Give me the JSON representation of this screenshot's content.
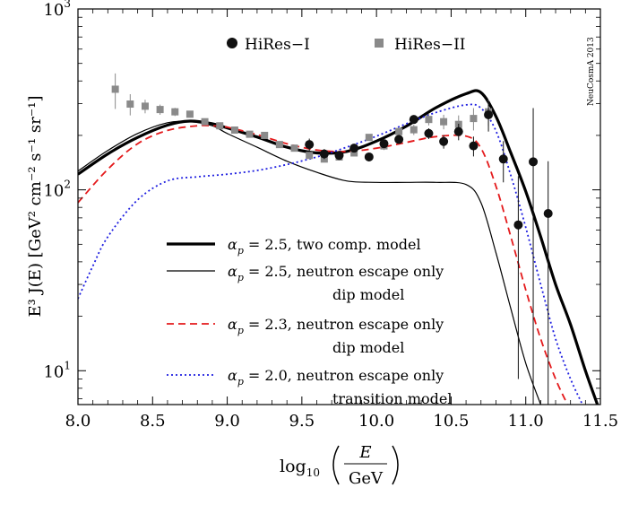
{
  "chart_data": {
    "type": "line",
    "xlim": [
      8.0,
      11.5
    ],
    "ylim": [
      6.5,
      1000
    ],
    "y_log": true,
    "x_ticks": [
      {
        "v": 8.0,
        "label": "8.0"
      },
      {
        "v": 8.5,
        "label": "8.5"
      },
      {
        "v": 9.0,
        "label": "9.0"
      },
      {
        "v": 9.5,
        "label": "9.5"
      },
      {
        "v": 10.0,
        "label": "10.0"
      },
      {
        "v": 10.5,
        "label": "10.5"
      },
      {
        "v": 11.0,
        "label": "11.0"
      },
      {
        "v": 11.5,
        "label": "11.5"
      }
    ],
    "y_ticks": [
      {
        "v": 10,
        "base": "10",
        "exp": "1"
      },
      {
        "v": 100,
        "base": "10",
        "exp": "2"
      },
      {
        "v": 1000,
        "base": "10",
        "exp": "3"
      }
    ],
    "xlabel": {
      "prefix": "log",
      "sub": "10",
      "num": "E",
      "den": "GeV"
    },
    "ylabel": "E³ J(E) [GeV² cm⁻² s⁻¹ sr⁻¹]",
    "watermark": "NeuCosmA 2013",
    "grid": false,
    "legend_top": {
      "position": "top-center",
      "entries": [
        {
          "name": "HiRes−I",
          "marker": "circle",
          "color": "#111111"
        },
        {
          "name": "HiRes−II",
          "marker": "square",
          "color": "#8a8a8a"
        }
      ]
    },
    "legend_lines": {
      "position": "bottom-center",
      "entries": [
        {
          "label": "αp = 2.5, two comp. model",
          "sub": [
            "two comp. model"
          ],
          "color": "#000000",
          "style": "thick"
        },
        {
          "label": "αp = 2.5, neutron escape only",
          "sub": [
            "dip model"
          ],
          "color": "#000000",
          "style": "thin"
        },
        {
          "label": "αp = 2.3, neutron escape only",
          "sub": [
            "dip model"
          ],
          "color": "#e41a1c",
          "style": "dashed"
        },
        {
          "label": "αp = 2.0, neutron escape only",
          "sub": [
            "transition model"
          ],
          "color": "#1f1fe0",
          "style": "dotted"
        }
      ]
    },
    "legend_text": {
      "l1": "= 2.5, two comp. model",
      "l2": "= 2.5, neutron escape only",
      "l2b": "dip model",
      "l3": "= 2.3, neutron escape only",
      "l3b": "dip model",
      "l4": "= 2.0, neutron escape only",
      "l4b": "transition model",
      "alpha": "α",
      "p": "p"
    },
    "series": [
      {
        "name": "αp = 2.5, two comp. model",
        "color": "#000000",
        "width": 3.2,
        "dash": "",
        "x": [
          8.0,
          8.2,
          8.4,
          8.6,
          8.75,
          8.9,
          9.0,
          9.2,
          9.4,
          9.6,
          9.8,
          10.0,
          10.2,
          10.4,
          10.6,
          10.7,
          10.8,
          10.9,
          11.0,
          11.1,
          11.2,
          11.3,
          11.4,
          11.48
        ],
        "y": [
          122,
          158,
          195,
          228,
          240,
          232,
          220,
          196,
          172,
          160,
          163,
          186,
          225,
          285,
          340,
          345,
          255,
          160,
          98,
          55,
          30,
          18,
          10,
          6.5
        ]
      },
      {
        "name": "αp = 2.5, neutron escape only",
        "color": "#000000",
        "width": 1.2,
        "dash": "",
        "x": [
          8.0,
          8.2,
          8.4,
          8.6,
          8.75,
          8.9,
          9.0,
          9.2,
          9.4,
          9.6,
          9.8,
          10.0,
          10.2,
          10.4,
          10.6,
          10.7,
          10.8,
          10.9,
          11.0,
          11.1
        ],
        "y": [
          127,
          165,
          205,
          235,
          238,
          226,
          205,
          172,
          144,
          125,
          112,
          110,
          110,
          110,
          107,
          85,
          45,
          22,
          11,
          6.5
        ]
      },
      {
        "name": "αp = 2.3, neutron escape only",
        "color": "#e41a1c",
        "width": 1.8,
        "dash": "8 5",
        "x": [
          8.0,
          8.2,
          8.4,
          8.6,
          8.8,
          8.9,
          9.0,
          9.2,
          9.4,
          9.6,
          9.8,
          10.0,
          10.2,
          10.4,
          10.6,
          10.7,
          10.8,
          10.9,
          11.0,
          11.1,
          11.2,
          11.28
        ],
        "y": [
          85,
          130,
          180,
          213,
          226,
          226,
          222,
          202,
          180,
          166,
          163,
          170,
          183,
          197,
          198,
          170,
          105,
          55,
          28,
          15,
          9,
          6.5
        ]
      },
      {
        "name": "αp = 2.0, neutron escape only",
        "color": "#1f1fe0",
        "width": 1.8,
        "dash": "2 3",
        "x": [
          8.0,
          8.1,
          8.2,
          8.4,
          8.6,
          8.8,
          9.0,
          9.2,
          9.4,
          9.6,
          9.8,
          10.0,
          10.2,
          10.4,
          10.6,
          10.7,
          10.8,
          10.9,
          11.0,
          11.1,
          11.2,
          11.3,
          11.38
        ],
        "y": [
          25,
          38,
          55,
          88,
          112,
          118,
          122,
          128,
          138,
          152,
          172,
          198,
          232,
          268,
          295,
          283,
          212,
          120,
          62,
          30,
          15,
          9,
          6.5
        ]
      }
    ],
    "hires1": {
      "name": "HiRes−I",
      "x": [
        9.55,
        9.65,
        9.75,
        9.85,
        9.95,
        10.05,
        10.15,
        10.25,
        10.35,
        10.45,
        10.55,
        10.65,
        10.75,
        10.85,
        10.95,
        11.05,
        11.15
      ],
      "y": [
        178,
        158,
        155,
        170,
        152,
        180,
        190,
        245,
        205,
        185,
        210,
        175,
        260,
        148,
        64,
        143,
        74
      ],
      "err": [
        14,
        10,
        8,
        9,
        8,
        8,
        9,
        12,
        14,
        16,
        22,
        22,
        50,
        38,
        55,
        140,
        70
      ]
    },
    "hires2": {
      "name": "HiRes−II",
      "x": [
        8.25,
        8.35,
        8.45,
        8.55,
        8.65,
        8.75,
        8.85,
        8.95,
        9.05,
        9.15,
        9.25,
        9.35,
        9.45,
        9.55,
        9.65,
        9.75,
        9.85,
        9.95,
        10.05,
        10.15,
        10.25,
        10.35,
        10.45,
        10.55,
        10.65,
        10.75
      ],
      "y": [
        360,
        298,
        290,
        278,
        270,
        262,
        238,
        226,
        214,
        203,
        200,
        178,
        170,
        155,
        148,
        152,
        160,
        195,
        175,
        210,
        215,
        245,
        238,
        230,
        248,
        270
      ],
      "err": [
        80,
        40,
        25,
        18,
        14,
        10,
        8,
        6,
        5,
        5,
        5,
        5,
        5,
        5,
        5,
        6,
        7,
        8,
        9,
        11,
        14,
        18,
        22,
        28,
        35,
        45
      ]
    }
  }
}
